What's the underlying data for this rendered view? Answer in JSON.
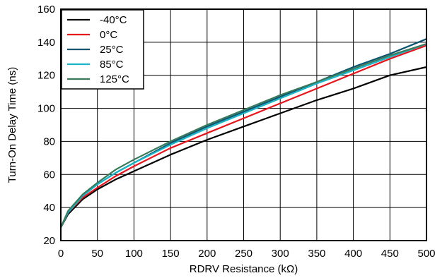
{
  "chart_data": {
    "type": "line",
    "title": "",
    "xlabel": "RDRV Resistance (kΩ)",
    "ylabel": "Turn-On Delay Time (ns)",
    "xlim": [
      0,
      500
    ],
    "ylim": [
      20,
      160
    ],
    "xticks": [
      0,
      50,
      100,
      150,
      200,
      250,
      300,
      350,
      400,
      450,
      500
    ],
    "yticks": [
      20,
      40,
      60,
      80,
      100,
      120,
      140,
      160
    ],
    "grid": true,
    "legend_position": "top-left",
    "series": [
      {
        "name": "-40°C",
        "color": "#000000",
        "x": [
          0,
          10,
          30,
          50,
          75,
          100,
          150,
          200,
          250,
          300,
          350,
          400,
          450,
          500
        ],
        "y": [
          28,
          36,
          45,
          51,
          57,
          62,
          72,
          81,
          89,
          97,
          105,
          112,
          120,
          125
        ]
      },
      {
        "name": "0°C",
        "color": "#e8141c",
        "x": [
          0,
          10,
          30,
          50,
          75,
          100,
          150,
          200,
          250,
          300,
          350,
          400,
          450,
          500
        ],
        "y": [
          28,
          37,
          46,
          52,
          59,
          65,
          76,
          85,
          94,
          103,
          112,
          121,
          130,
          138
        ]
      },
      {
        "name": "25°C",
        "color": "#0d5470",
        "x": [
          0,
          10,
          30,
          50,
          75,
          100,
          150,
          200,
          250,
          300,
          350,
          400,
          450,
          500
        ],
        "y": [
          28,
          37,
          47,
          54,
          61,
          67,
          79,
          89,
          98,
          107,
          116,
          125,
          133,
          142
        ]
      },
      {
        "name": "85°C",
        "color": "#19b5c8",
        "x": [
          0,
          10,
          30,
          50,
          75,
          100,
          150,
          200,
          250,
          300,
          350,
          400,
          450,
          500
        ],
        "y": [
          28,
          37,
          47,
          54,
          61,
          67,
          78,
          88,
          97,
          106,
          115,
          123,
          131,
          139
        ]
      },
      {
        "name": "125°C",
        "color": "#3a7a5a",
        "x": [
          0,
          10,
          30,
          50,
          75,
          100,
          150,
          200,
          250,
          300,
          350,
          400,
          450,
          500
        ],
        "y": [
          28,
          38,
          48,
          55,
          63,
          69,
          80,
          90,
          99,
          108,
          116,
          124,
          132,
          139
        ]
      }
    ]
  }
}
